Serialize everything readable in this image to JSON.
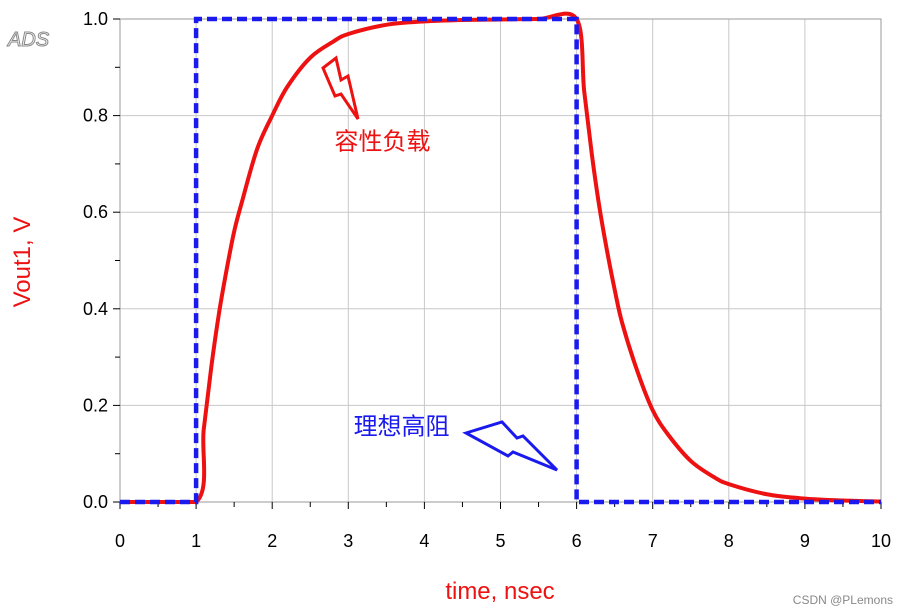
{
  "logo": "ADS",
  "watermark": "CSDN @PLemons",
  "colors": {
    "output": "#ee1111",
    "input": "#1a1aee",
    "grid": "#c8c8c8",
    "axis": "#000000"
  },
  "chart_data": {
    "type": "line",
    "title": "",
    "xlabel": "time, nsec",
    "ylabel": "Vout1, V",
    "xlim": [
      0,
      10
    ],
    "ylim": [
      0,
      1.0
    ],
    "x_ticks": [
      "0",
      "1",
      "2",
      "3",
      "4",
      "5",
      "6",
      "7",
      "8",
      "9",
      "10"
    ],
    "y_ticks": [
      "0.0",
      "0.2",
      "0.4",
      "0.6",
      "0.8",
      "1.0"
    ],
    "grid": true,
    "series": [
      {
        "style": "solid",
        "color": "#ee1111",
        "x": [
          0,
          1.0,
          1.1,
          1.2,
          1.3,
          1.4,
          1.5,
          1.6,
          1.8,
          2.0,
          2.2,
          2.5,
          2.8,
          3.0,
          3.5,
          4.0,
          4.5,
          5.0,
          5.5,
          6.0,
          6.1,
          6.2,
          6.3,
          6.4,
          6.5,
          6.6,
          6.8,
          7.0,
          7.2,
          7.5,
          7.8,
          8.0,
          8.5,
          9.0,
          9.5,
          10.0
        ],
        "y": [
          0,
          0,
          0.15,
          0.28,
          0.39,
          0.48,
          0.56,
          0.62,
          0.73,
          0.8,
          0.86,
          0.92,
          0.953,
          0.969,
          0.988,
          0.995,
          0.998,
          0.999,
          1.0,
          1.0,
          0.85,
          0.72,
          0.61,
          0.52,
          0.44,
          0.37,
          0.27,
          0.19,
          0.14,
          0.085,
          0.052,
          0.037,
          0.016,
          0.007,
          0.003,
          0.001
        ]
      },
      {
        "style": "dashed",
        "color": "#1a1aee",
        "x": [
          0,
          1.0,
          1.0,
          6.0,
          6.0,
          10.0
        ],
        "y": [
          0,
          0,
          1.0,
          1.0,
          0,
          0
        ]
      }
    ],
    "annotations": [
      {
        "text": "容性负载",
        "color": "#ee1111",
        "x": 3.45,
        "y": 0.73
      },
      {
        "text": "理想高阻",
        "color": "#1a1aee",
        "x": 3.7,
        "y": 0.14
      }
    ]
  }
}
